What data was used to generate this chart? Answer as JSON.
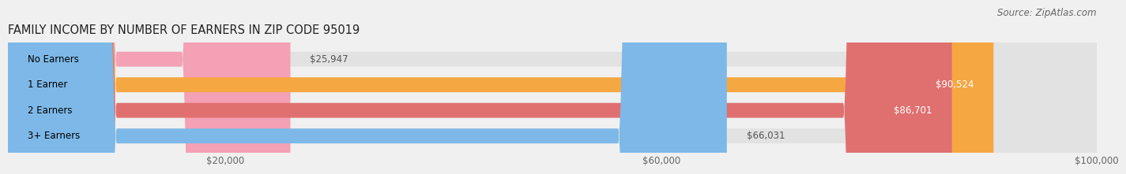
{
  "title": "FAMILY INCOME BY NUMBER OF EARNERS IN ZIP CODE 95019",
  "source": "Source: ZipAtlas.com",
  "categories": [
    "No Earners",
    "1 Earner",
    "2 Earners",
    "3+ Earners"
  ],
  "values": [
    25947,
    90524,
    86701,
    66031
  ],
  "bar_colors": [
    "#f4a0b5",
    "#f5a742",
    "#e07070",
    "#7db8e8"
  ],
  "label_colors": [
    "#555555",
    "#ffffff",
    "#ffffff",
    "#555555"
  ],
  "background_color": "#f0f0f0",
  "bar_background": "#e2e2e2",
  "xlim": [
    0,
    100000
  ],
  "xticks": [
    20000,
    60000,
    100000
  ],
  "xtick_labels": [
    "$20,000",
    "$60,000",
    "$100,000"
  ],
  "bar_height": 0.58,
  "title_fontsize": 10.5,
  "label_fontsize": 8.5,
  "value_fontsize": 8.5,
  "source_fontsize": 8.5
}
